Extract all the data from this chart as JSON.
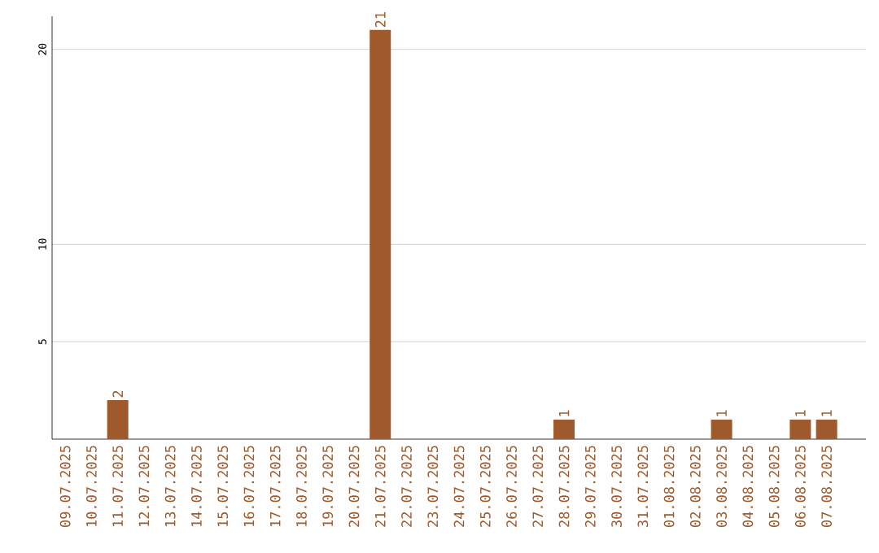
{
  "chart_data": {
    "type": "bar",
    "categories": [
      "09.07.2025",
      "10.07.2025",
      "11.07.2025",
      "12.07.2025",
      "13.07.2025",
      "14.07.2025",
      "15.07.2025",
      "16.07.2025",
      "17.07.2025",
      "18.07.2025",
      "19.07.2025",
      "20.07.2025",
      "21.07.2025",
      "22.07.2025",
      "23.07.2025",
      "24.07.2025",
      "25.07.2025",
      "26.07.2025",
      "27.07.2025",
      "28.07.2025",
      "29.07.2025",
      "30.07.2025",
      "31.07.2025",
      "01.08.2025",
      "02.08.2025",
      "03.08.2025",
      "04.08.2025",
      "05.08.2025",
      "06.08.2025",
      "07.08.2025"
    ],
    "values": [
      0,
      0,
      2,
      0,
      0,
      0,
      0,
      0,
      0,
      0,
      0,
      0,
      21,
      0,
      0,
      0,
      0,
      0,
      0,
      1,
      0,
      0,
      0,
      0,
      0,
      1,
      0,
      0,
      1,
      1
    ],
    "value_labels": [
      null,
      null,
      "2",
      null,
      null,
      null,
      null,
      null,
      null,
      null,
      null,
      null,
      "21",
      null,
      null,
      null,
      null,
      null,
      null,
      "1",
      null,
      null,
      null,
      null,
      null,
      "1",
      null,
      null,
      "1",
      "1"
    ],
    "color": "#a0592b",
    "ylim": [
      0,
      21.7
    ],
    "yticks": [
      5,
      10,
      20
    ],
    "grid": "y"
  }
}
